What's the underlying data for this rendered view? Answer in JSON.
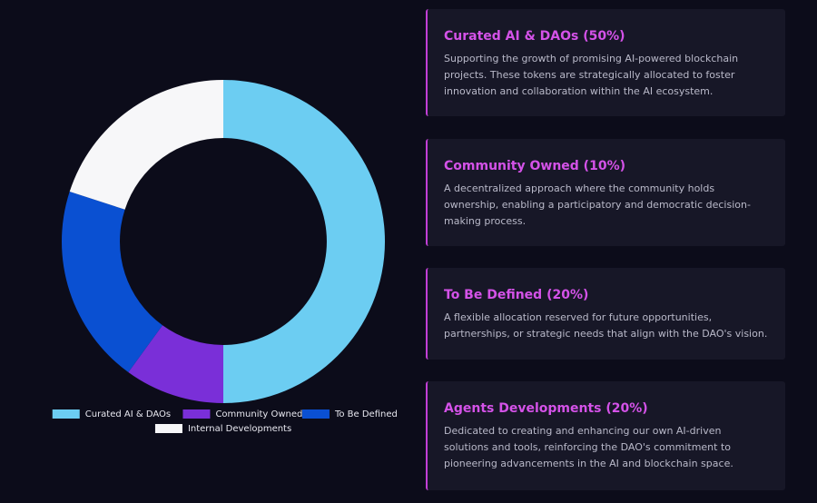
{
  "chart_data": {
    "type": "pie",
    "categories": [
      "Curated AI & DAOs",
      "Community Owned",
      "To Be Defined",
      "Internal Developments"
    ],
    "values": [
      50,
      10,
      20,
      20
    ],
    "colors": [
      "#6ccdf2",
      "#7a2fd8",
      "#0a50d2",
      "#f7f7f9"
    ],
    "donut": true
  },
  "cards": [
    {
      "title": "Curated AI & DAOs (50%)",
      "text": "Supporting the growth of promising AI-powered blockchain projects. These tokens are strategically allocated to foster innovation and collaboration within the AI ecosystem."
    },
    {
      "title": "Community Owned (10%)",
      "text": "A decentralized approach where the community holds ownership, enabling a participatory and democratic decision-making process."
    },
    {
      "title": "To Be Defined (20%)",
      "text": "A flexible allocation reserved for future opportunities, partnerships, or strategic needs that align with the DAO's vision."
    },
    {
      "title": "Agents Developments (20%)",
      "text": "Dedicated to creating and enhancing our own AI-driven solutions and tools, reinforcing the DAO's commitment to pioneering advancements in the AI and blockchain space."
    }
  ]
}
